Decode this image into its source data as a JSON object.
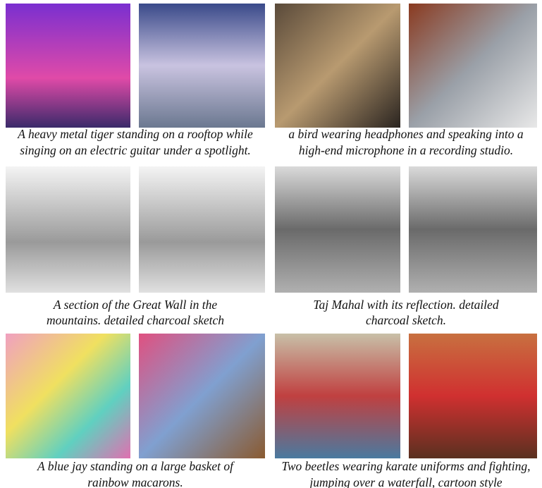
{
  "groups": [
    {
      "caption": [
        "A heavy metal tiger standing on a rooftop while",
        "singing on an electric guitar under a spotlight."
      ]
    },
    {
      "caption": [
        "a bird wearing headphones and speaking into a",
        "high-end microphone in a recording studio."
      ]
    },
    {
      "caption": [
        "A section of the Great Wall in the",
        "mountains. detailed charcoal sketch"
      ]
    },
    {
      "caption": [
        "Taj Mahal with its reflection. detailed",
        "charcoal sketch."
      ]
    },
    {
      "caption": [
        "A blue jay standing on a large basket of",
        "rainbow macarons."
      ]
    },
    {
      "caption": [
        "Two beetles wearing karate uniforms and fighting,",
        "jumping over a waterfall, cartoon style"
      ]
    }
  ]
}
